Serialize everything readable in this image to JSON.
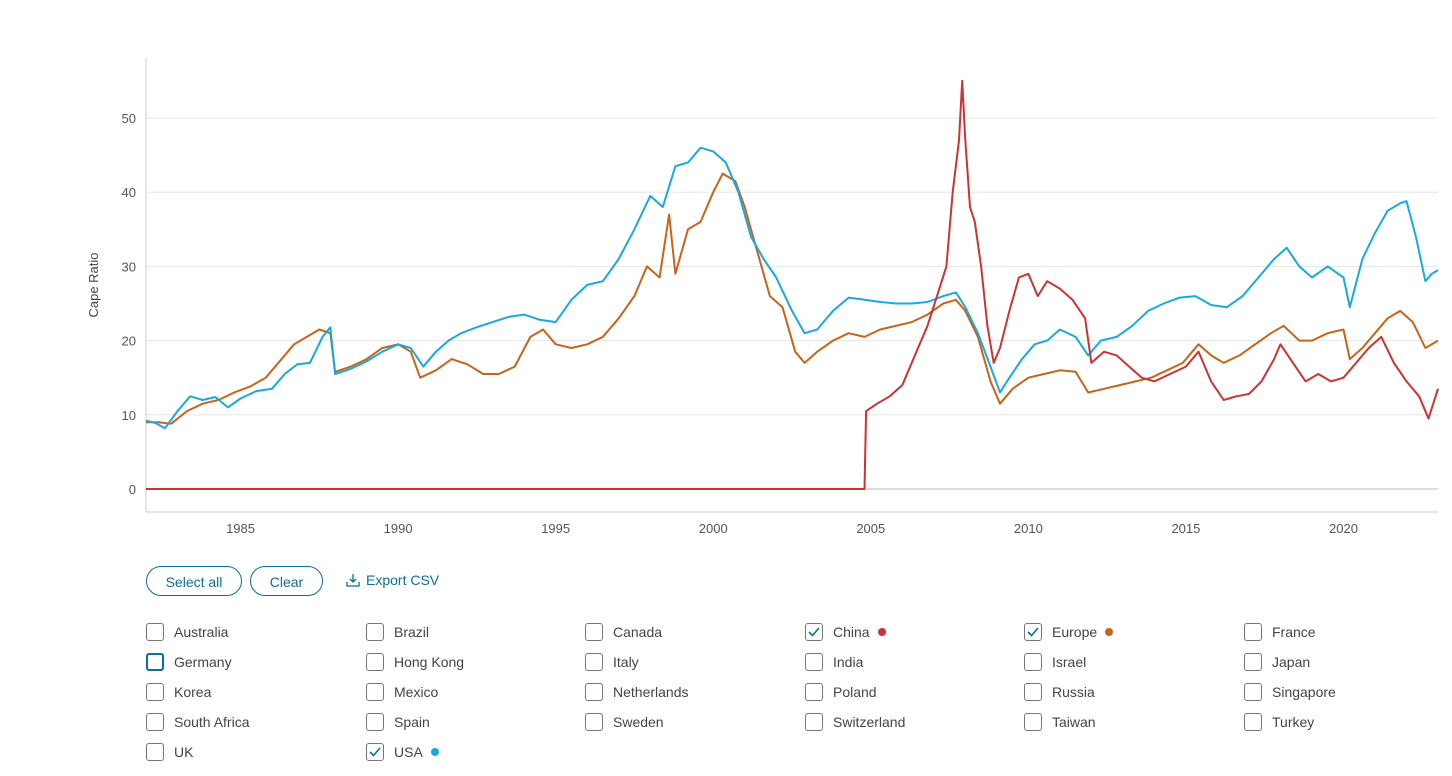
{
  "chart_data": {
    "type": "line",
    "title": "",
    "xlabel": "",
    "ylabel": "Cape Ratio",
    "xlim": [
      1982.0,
      2023.0
    ],
    "ylim": [
      -3,
      58
    ],
    "yticks": [
      0,
      10,
      20,
      30,
      40,
      50
    ],
    "xticks": [
      1985,
      1990,
      1995,
      2000,
      2005,
      2010,
      2015,
      2020
    ],
    "series": [
      {
        "name": "USA",
        "color": "#19a9e0",
        "points": [
          [
            1982.0,
            9.2
          ],
          [
            1982.3,
            8.9
          ],
          [
            1982.6,
            8.2
          ],
          [
            1983.0,
            10.5
          ],
          [
            1983.4,
            12.5
          ],
          [
            1983.8,
            12.0
          ],
          [
            1984.2,
            12.4
          ],
          [
            1984.6,
            11.0
          ],
          [
            1985.0,
            12.2
          ],
          [
            1985.5,
            13.2
          ],
          [
            1986.0,
            13.5
          ],
          [
            1986.4,
            15.5
          ],
          [
            1986.8,
            16.8
          ],
          [
            1987.2,
            17.0
          ],
          [
            1987.6,
            20.5
          ],
          [
            1987.85,
            21.8
          ],
          [
            1988.0,
            15.5
          ],
          [
            1988.5,
            16.2
          ],
          [
            1989.0,
            17.2
          ],
          [
            1989.5,
            18.5
          ],
          [
            1990.0,
            19.5
          ],
          [
            1990.4,
            19.0
          ],
          [
            1990.8,
            16.5
          ],
          [
            1991.2,
            18.5
          ],
          [
            1991.6,
            20.0
          ],
          [
            1992.0,
            21.0
          ],
          [
            1992.5,
            21.8
          ],
          [
            1993.0,
            22.5
          ],
          [
            1993.5,
            23.2
          ],
          [
            1994.0,
            23.5
          ],
          [
            1994.5,
            22.8
          ],
          [
            1995.0,
            22.5
          ],
          [
            1995.5,
            25.5
          ],
          [
            1996.0,
            27.5
          ],
          [
            1996.5,
            28.0
          ],
          [
            1997.0,
            31.0
          ],
          [
            1997.5,
            35.0
          ],
          [
            1998.0,
            39.5
          ],
          [
            1998.4,
            38.0
          ],
          [
            1998.8,
            43.5
          ],
          [
            1999.2,
            44.0
          ],
          [
            1999.6,
            46.0
          ],
          [
            2000.0,
            45.5
          ],
          [
            2000.4,
            44.0
          ],
          [
            2000.8,
            40.0
          ],
          [
            2001.2,
            34.0
          ],
          [
            2001.6,
            31.0
          ],
          [
            2002.0,
            28.5
          ],
          [
            2002.5,
            24.0
          ],
          [
            2002.9,
            21.0
          ],
          [
            2003.3,
            21.5
          ],
          [
            2003.8,
            24.0
          ],
          [
            2004.3,
            25.8
          ],
          [
            2004.8,
            25.5
          ],
          [
            2005.3,
            25.2
          ],
          [
            2005.8,
            25.0
          ],
          [
            2006.3,
            25.0
          ],
          [
            2006.8,
            25.2
          ],
          [
            2007.3,
            26.0
          ],
          [
            2007.7,
            26.5
          ],
          [
            2008.0,
            24.5
          ],
          [
            2008.4,
            21.0
          ],
          [
            2008.8,
            16.5
          ],
          [
            2009.1,
            13.0
          ],
          [
            2009.4,
            15.0
          ],
          [
            2009.8,
            17.5
          ],
          [
            2010.2,
            19.5
          ],
          [
            2010.6,
            20.0
          ],
          [
            2011.0,
            21.5
          ],
          [
            2011.5,
            20.5
          ],
          [
            2011.9,
            18.0
          ],
          [
            2012.3,
            20.0
          ],
          [
            2012.8,
            20.5
          ],
          [
            2013.3,
            22.0
          ],
          [
            2013.8,
            24.0
          ],
          [
            2014.3,
            25.0
          ],
          [
            2014.8,
            25.8
          ],
          [
            2015.3,
            26.0
          ],
          [
            2015.8,
            24.8
          ],
          [
            2016.3,
            24.5
          ],
          [
            2016.8,
            26.0
          ],
          [
            2017.3,
            28.5
          ],
          [
            2017.8,
            31.0
          ],
          [
            2018.2,
            32.5
          ],
          [
            2018.6,
            30.0
          ],
          [
            2019.0,
            28.5
          ],
          [
            2019.5,
            30.0
          ],
          [
            2020.0,
            28.5
          ],
          [
            2020.2,
            24.5
          ],
          [
            2020.6,
            31.0
          ],
          [
            2021.0,
            34.5
          ],
          [
            2021.4,
            37.5
          ],
          [
            2021.8,
            38.5
          ],
          [
            2022.0,
            38.8
          ],
          [
            2022.3,
            34.0
          ],
          [
            2022.6,
            28.0
          ],
          [
            2022.8,
            29.0
          ],
          [
            2023.0,
            29.5
          ]
        ]
      },
      {
        "name": "Europe",
        "color": "#c8631a",
        "points": [
          [
            1982.0,
            9.0
          ],
          [
            1982.4,
            9.0
          ],
          [
            1982.8,
            8.8
          ],
          [
            1983.3,
            10.5
          ],
          [
            1983.8,
            11.5
          ],
          [
            1984.3,
            12.0
          ],
          [
            1984.8,
            13.0
          ],
          [
            1985.3,
            13.8
          ],
          [
            1985.8,
            15.0
          ],
          [
            1986.3,
            17.5
          ],
          [
            1986.7,
            19.5
          ],
          [
            1987.1,
            20.5
          ],
          [
            1987.5,
            21.5
          ],
          [
            1987.85,
            21.0
          ],
          [
            1988.0,
            15.8
          ],
          [
            1988.5,
            16.5
          ],
          [
            1989.0,
            17.5
          ],
          [
            1989.5,
            19.0
          ],
          [
            1990.0,
            19.5
          ],
          [
            1990.4,
            18.5
          ],
          [
            1990.7,
            15.0
          ],
          [
            1991.2,
            16.0
          ],
          [
            1991.7,
            17.5
          ],
          [
            1992.2,
            16.8
          ],
          [
            1992.7,
            15.5
          ],
          [
            1993.2,
            15.5
          ],
          [
            1993.7,
            16.5
          ],
          [
            1994.2,
            20.5
          ],
          [
            1994.6,
            21.5
          ],
          [
            1995.0,
            19.5
          ],
          [
            1995.5,
            19.0
          ],
          [
            1996.0,
            19.5
          ],
          [
            1996.5,
            20.5
          ],
          [
            1997.0,
            23.0
          ],
          [
            1997.5,
            26.0
          ],
          [
            1997.9,
            30.0
          ],
          [
            1998.3,
            28.5
          ],
          [
            1998.6,
            37.0
          ],
          [
            1998.8,
            29.0
          ],
          [
            1999.2,
            35.0
          ],
          [
            1999.6,
            36.0
          ],
          [
            2000.0,
            40.0
          ],
          [
            2000.3,
            42.5
          ],
          [
            2000.7,
            41.5
          ],
          [
            2001.0,
            38.0
          ],
          [
            2001.4,
            32.0
          ],
          [
            2001.8,
            26.0
          ],
          [
            2002.2,
            24.5
          ],
          [
            2002.6,
            18.5
          ],
          [
            2002.9,
            17.0
          ],
          [
            2003.3,
            18.5
          ],
          [
            2003.8,
            20.0
          ],
          [
            2004.3,
            21.0
          ],
          [
            2004.8,
            20.5
          ],
          [
            2005.3,
            21.5
          ],
          [
            2005.8,
            22.0
          ],
          [
            2006.3,
            22.5
          ],
          [
            2006.8,
            23.5
          ],
          [
            2007.3,
            25.0
          ],
          [
            2007.7,
            25.5
          ],
          [
            2008.0,
            24.0
          ],
          [
            2008.4,
            20.5
          ],
          [
            2008.8,
            14.5
          ],
          [
            2009.1,
            11.5
          ],
          [
            2009.5,
            13.5
          ],
          [
            2010.0,
            15.0
          ],
          [
            2010.5,
            15.5
          ],
          [
            2011.0,
            16.0
          ],
          [
            2011.5,
            15.8
          ],
          [
            2011.9,
            13.0
          ],
          [
            2012.4,
            13.5
          ],
          [
            2012.9,
            14.0
          ],
          [
            2013.4,
            14.5
          ],
          [
            2013.9,
            15.0
          ],
          [
            2014.4,
            16.0
          ],
          [
            2014.9,
            17.0
          ],
          [
            2015.4,
            19.5
          ],
          [
            2015.8,
            18.0
          ],
          [
            2016.2,
            17.0
          ],
          [
            2016.7,
            18.0
          ],
          [
            2017.2,
            19.5
          ],
          [
            2017.7,
            21.0
          ],
          [
            2018.1,
            22.0
          ],
          [
            2018.6,
            20.0
          ],
          [
            2019.0,
            20.0
          ],
          [
            2019.5,
            21.0
          ],
          [
            2020.0,
            21.5
          ],
          [
            2020.2,
            17.5
          ],
          [
            2020.6,
            19.0
          ],
          [
            2021.0,
            21.0
          ],
          [
            2021.4,
            23.0
          ],
          [
            2021.8,
            24.0
          ],
          [
            2022.2,
            22.5
          ],
          [
            2022.6,
            19.0
          ],
          [
            2023.0,
            20.0
          ]
        ]
      },
      {
        "name": "China",
        "color": "#cc3333",
        "points": [
          [
            1982.0,
            0
          ],
          [
            2004.8,
            0
          ],
          [
            2004.85,
            10.5
          ],
          [
            2005.2,
            11.5
          ],
          [
            2005.6,
            12.5
          ],
          [
            2006.0,
            14.0
          ],
          [
            2006.4,
            18.0
          ],
          [
            2006.8,
            22.0
          ],
          [
            2007.1,
            26.0
          ],
          [
            2007.4,
            30.0
          ],
          [
            2007.6,
            40.0
          ],
          [
            2007.8,
            47.0
          ],
          [
            2007.9,
            55.0
          ],
          [
            2008.0,
            47.0
          ],
          [
            2008.15,
            38.0
          ],
          [
            2008.3,
            36.0
          ],
          [
            2008.5,
            30.0
          ],
          [
            2008.7,
            22.0
          ],
          [
            2008.9,
            17.0
          ],
          [
            2009.1,
            19.0
          ],
          [
            2009.4,
            24.0
          ],
          [
            2009.7,
            28.5
          ],
          [
            2010.0,
            29.0
          ],
          [
            2010.3,
            26.0
          ],
          [
            2010.6,
            28.0
          ],
          [
            2011.0,
            27.0
          ],
          [
            2011.4,
            25.5
          ],
          [
            2011.8,
            23.0
          ],
          [
            2012.0,
            17.0
          ],
          [
            2012.4,
            18.5
          ],
          [
            2012.8,
            18.0
          ],
          [
            2013.2,
            16.5
          ],
          [
            2013.6,
            15.0
          ],
          [
            2014.0,
            14.5
          ],
          [
            2014.5,
            15.5
          ],
          [
            2015.0,
            16.5
          ],
          [
            2015.4,
            18.5
          ],
          [
            2015.8,
            14.5
          ],
          [
            2016.2,
            12.0
          ],
          [
            2016.6,
            12.5
          ],
          [
            2017.0,
            12.8
          ],
          [
            2017.4,
            14.5
          ],
          [
            2017.8,
            17.5
          ],
          [
            2018.0,
            19.5
          ],
          [
            2018.4,
            17.0
          ],
          [
            2018.8,
            14.5
          ],
          [
            2019.2,
            15.5
          ],
          [
            2019.6,
            14.5
          ],
          [
            2020.0,
            15.0
          ],
          [
            2020.4,
            17.0
          ],
          [
            2020.8,
            19.0
          ],
          [
            2021.2,
            20.5
          ],
          [
            2021.6,
            17.0
          ],
          [
            2022.0,
            14.5
          ],
          [
            2022.4,
            12.5
          ],
          [
            2022.7,
            9.5
          ],
          [
            2023.0,
            13.5
          ]
        ]
      }
    ]
  },
  "controls": {
    "select_all": "Select all",
    "clear": "Clear",
    "export_csv": "Export CSV"
  },
  "countries": [
    {
      "label": "Australia",
      "checked": false
    },
    {
      "label": "Brazil",
      "checked": false
    },
    {
      "label": "Canada",
      "checked": false
    },
    {
      "label": "China",
      "checked": true,
      "color": "#cc3333"
    },
    {
      "label": "Europe",
      "checked": true,
      "color": "#c8631a"
    },
    {
      "label": "France",
      "checked": false
    },
    {
      "label": "Germany",
      "checked": false,
      "focused": true
    },
    {
      "label": "Hong Kong",
      "checked": false
    },
    {
      "label": "Italy",
      "checked": false
    },
    {
      "label": "India",
      "checked": false
    },
    {
      "label": "Israel",
      "checked": false
    },
    {
      "label": "Japan",
      "checked": false
    },
    {
      "label": "Korea",
      "checked": false
    },
    {
      "label": "Mexico",
      "checked": false
    },
    {
      "label": "Netherlands",
      "checked": false
    },
    {
      "label": "Poland",
      "checked": false
    },
    {
      "label": "Russia",
      "checked": false
    },
    {
      "label": "Singapore",
      "checked": false
    },
    {
      "label": "South Africa",
      "checked": false
    },
    {
      "label": "Spain",
      "checked": false
    },
    {
      "label": "Sweden",
      "checked": false
    },
    {
      "label": "Switzerland",
      "checked": false
    },
    {
      "label": "Taiwan",
      "checked": false
    },
    {
      "label": "Turkey",
      "checked": false
    },
    {
      "label": "UK",
      "checked": false
    },
    {
      "label": "USA",
      "checked": true,
      "color": "#19a9e0"
    }
  ]
}
